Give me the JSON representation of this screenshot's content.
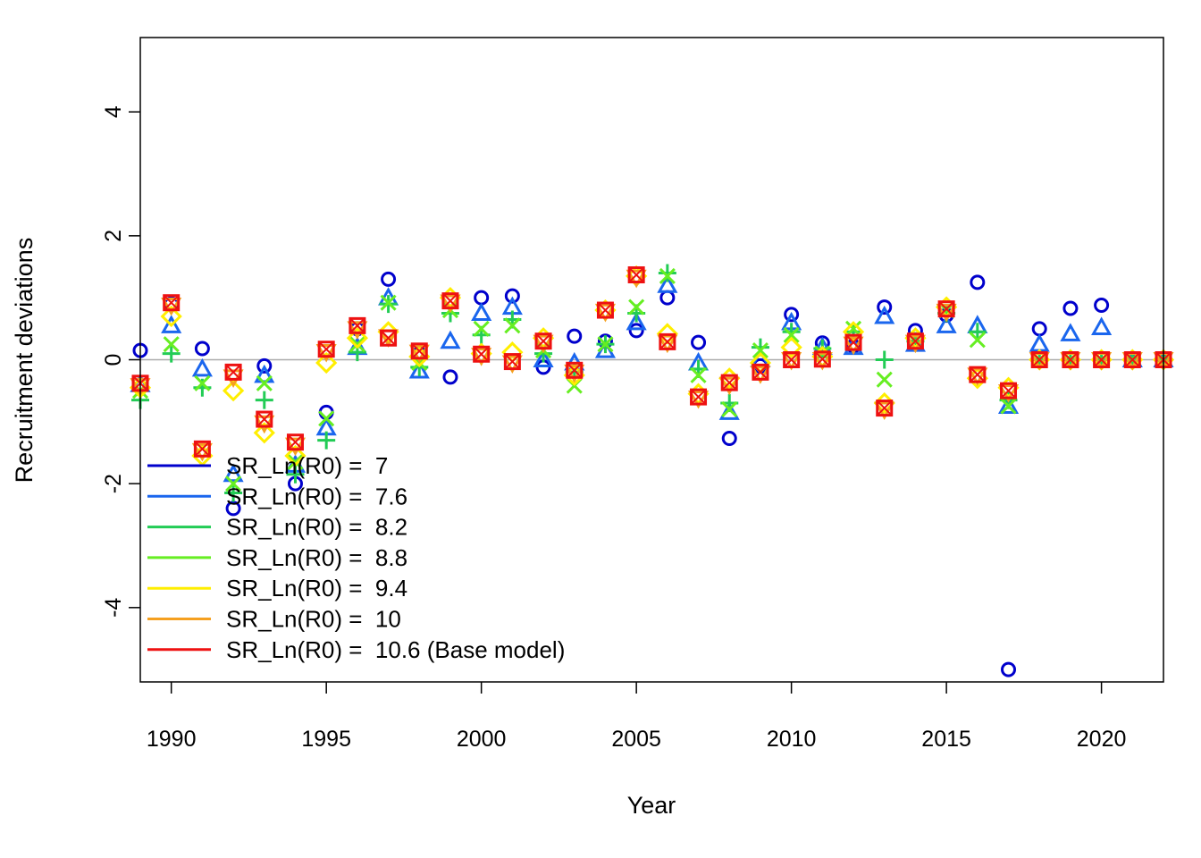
{
  "chart_data": {
    "type": "scatter",
    "title": "",
    "xlabel": "Year",
    "ylabel": "Recruitment deviations",
    "xlim": [
      1989,
      2022
    ],
    "ylim": [
      -5.2,
      5.2
    ],
    "xticks": [
      1990,
      1995,
      2000,
      2005,
      2010,
      2015,
      2020
    ],
    "yticks": [
      -4,
      -2,
      0,
      2,
      4
    ],
    "reference_line": 0,
    "grid": false,
    "legend_position": "bottom-left",
    "series": [
      {
        "name": "SR_Ln(R0) =  7",
        "color": "#0000cc",
        "marker": "circle",
        "points": [
          [
            1989,
            0.15
          ],
          [
            1990,
            0.9
          ],
          [
            1991,
            0.18
          ],
          [
            1992,
            -2.4
          ],
          [
            1993,
            -0.1
          ],
          [
            1994,
            -2.0
          ],
          [
            1995,
            -0.85
          ],
          [
            1996,
            0.5
          ],
          [
            1997,
            1.3
          ],
          [
            1998,
            0.1
          ],
          [
            1999,
            -0.28
          ],
          [
            2000,
            1.0
          ],
          [
            2001,
            1.03
          ],
          [
            2002,
            -0.12
          ],
          [
            2003,
            0.38
          ],
          [
            2004,
            0.3
          ],
          [
            2005,
            0.47
          ],
          [
            2006,
            1.0
          ],
          [
            2007,
            0.28
          ],
          [
            2008,
            -1.27
          ],
          [
            2009,
            -0.1
          ],
          [
            2010,
            0.73
          ],
          [
            2011,
            0.27
          ],
          [
            2012,
            0.22
          ],
          [
            2013,
            0.85
          ],
          [
            2014,
            0.47
          ],
          [
            2015,
            0.72
          ],
          [
            2016,
            1.25
          ],
          [
            2017,
            -5.0
          ],
          [
            2018,
            0.5
          ],
          [
            2019,
            0.83
          ],
          [
            2020,
            0.88
          ],
          [
            2021,
            0.0
          ],
          [
            2022,
            0.0
          ]
        ]
      },
      {
        "name": "SR_Ln(R0) =  7.6",
        "color": "#1a66ee",
        "marker": "triangle",
        "points": [
          [
            1989,
            -0.4
          ],
          [
            1990,
            0.55
          ],
          [
            1991,
            -0.15
          ],
          [
            1992,
            -1.85
          ],
          [
            1993,
            -0.25
          ],
          [
            1994,
            -1.7
          ],
          [
            1995,
            -1.1
          ],
          [
            1996,
            0.2
          ],
          [
            1997,
            1.0
          ],
          [
            1998,
            -0.18
          ],
          [
            1999,
            0.3
          ],
          [
            2000,
            0.75
          ],
          [
            2001,
            0.85
          ],
          [
            2002,
            0.0
          ],
          [
            2003,
            -0.05
          ],
          [
            2004,
            0.15
          ],
          [
            2005,
            0.6
          ],
          [
            2006,
            1.2
          ],
          [
            2007,
            -0.05
          ],
          [
            2008,
            -0.85
          ],
          [
            2009,
            0.0
          ],
          [
            2010,
            0.6
          ],
          [
            2011,
            0.2
          ],
          [
            2012,
            0.2
          ],
          [
            2013,
            0.7
          ],
          [
            2014,
            0.25
          ],
          [
            2015,
            0.55
          ],
          [
            2016,
            0.55
          ],
          [
            2017,
            -0.75
          ],
          [
            2018,
            0.25
          ],
          [
            2019,
            0.42
          ],
          [
            2020,
            0.52
          ],
          [
            2021,
            0.0
          ],
          [
            2022,
            0.0
          ]
        ]
      },
      {
        "name": "SR_Ln(R0) =  8.2",
        "color": "#22cc55",
        "marker": "plus",
        "points": [
          [
            1989,
            -0.65
          ],
          [
            1990,
            0.1
          ],
          [
            1991,
            -0.45
          ],
          [
            1992,
            -2.15
          ],
          [
            1993,
            -0.65
          ],
          [
            1994,
            -1.85
          ],
          [
            1995,
            -1.3
          ],
          [
            1996,
            0.12
          ],
          [
            1997,
            0.9
          ],
          [
            1998,
            -0.12
          ],
          [
            1999,
            0.75
          ],
          [
            2000,
            0.4
          ],
          [
            2001,
            0.65
          ],
          [
            2002,
            0.1
          ],
          [
            2003,
            -0.2
          ],
          [
            2004,
            0.25
          ],
          [
            2005,
            0.75
          ],
          [
            2006,
            1.4
          ],
          [
            2007,
            -0.15
          ],
          [
            2008,
            -0.7
          ],
          [
            2009,
            0.2
          ],
          [
            2010,
            0.45
          ],
          [
            2011,
            0.18
          ],
          [
            2012,
            0.45
          ],
          [
            2013,
            0.0
          ],
          [
            2014,
            0.3
          ],
          [
            2015,
            0.75
          ],
          [
            2016,
            0.45
          ],
          [
            2017,
            -0.65
          ],
          [
            2018,
            0.0
          ],
          [
            2019,
            0.0
          ],
          [
            2020,
            0.0
          ],
          [
            2021,
            0.0
          ],
          [
            2022,
            0.0
          ]
        ]
      },
      {
        "name": "SR_Ln(R0) =  8.8",
        "color": "#66ee22",
        "marker": "x",
        "points": [
          [
            1989,
            -0.5
          ],
          [
            1990,
            0.25
          ],
          [
            1991,
            -0.38
          ],
          [
            1992,
            -2.0
          ],
          [
            1993,
            -0.38
          ],
          [
            1994,
            -1.65
          ],
          [
            1995,
            -0.95
          ],
          [
            1996,
            0.25
          ],
          [
            1997,
            0.92
          ],
          [
            1998,
            -0.05
          ],
          [
            1999,
            0.8
          ],
          [
            2000,
            0.5
          ],
          [
            2001,
            0.55
          ],
          [
            2002,
            0.15
          ],
          [
            2003,
            -0.42
          ],
          [
            2004,
            0.25
          ],
          [
            2005,
            0.85
          ],
          [
            2006,
            1.35
          ],
          [
            2007,
            -0.25
          ],
          [
            2008,
            -0.8
          ],
          [
            2009,
            0.15
          ],
          [
            2010,
            0.4
          ],
          [
            2011,
            0.1
          ],
          [
            2012,
            0.5
          ],
          [
            2013,
            -0.32
          ],
          [
            2014,
            0.3
          ],
          [
            2015,
            0.8
          ],
          [
            2016,
            0.32
          ],
          [
            2017,
            -0.75
          ],
          [
            2018,
            0.0
          ],
          [
            2019,
            0.0
          ],
          [
            2020,
            0.0
          ],
          [
            2021,
            0.0
          ],
          [
            2022,
            0.0
          ]
        ]
      },
      {
        "name": "SR_Ln(R0) =  9.4",
        "color": "#ffee00",
        "marker": "diamond",
        "points": [
          [
            1989,
            -0.45
          ],
          [
            1990,
            0.7
          ],
          [
            1991,
            -1.55
          ],
          [
            1992,
            -0.5
          ],
          [
            1993,
            -1.18
          ],
          [
            1994,
            -1.55
          ],
          [
            1995,
            -0.05
          ],
          [
            1996,
            0.35
          ],
          [
            1997,
            0.45
          ],
          [
            1998,
            0.05
          ],
          [
            1999,
            1.0
          ],
          [
            2000,
            0.1
          ],
          [
            2001,
            0.12
          ],
          [
            2002,
            0.35
          ],
          [
            2003,
            -0.25
          ],
          [
            2004,
            0.8
          ],
          [
            2005,
            1.35
          ],
          [
            2006,
            0.42
          ],
          [
            2007,
            -0.55
          ],
          [
            2008,
            -0.3
          ],
          [
            2009,
            -0.05
          ],
          [
            2010,
            0.2
          ],
          [
            2011,
            0.05
          ],
          [
            2012,
            0.45
          ],
          [
            2013,
            -0.7
          ],
          [
            2014,
            0.35
          ],
          [
            2015,
            0.85
          ],
          [
            2016,
            -0.3
          ],
          [
            2017,
            -0.45
          ],
          [
            2018,
            0.0
          ],
          [
            2019,
            0.0
          ],
          [
            2020,
            0.0
          ],
          [
            2021,
            0.0
          ],
          [
            2022,
            0.0
          ]
        ]
      },
      {
        "name": "SR_Ln(R0) =  10",
        "color": "#f5a020",
        "marker": "triangle-down",
        "points": [
          [
            1989,
            -0.42
          ],
          [
            1990,
            0.88
          ],
          [
            1991,
            -1.47
          ],
          [
            1992,
            -0.28
          ],
          [
            1993,
            -1.02
          ],
          [
            1994,
            -1.38
          ],
          [
            1995,
            0.13
          ],
          [
            1996,
            0.5
          ],
          [
            1997,
            0.37
          ],
          [
            1998,
            0.12
          ],
          [
            1999,
            0.93
          ],
          [
            2000,
            0.07
          ],
          [
            2001,
            -0.05
          ],
          [
            2002,
            0.28
          ],
          [
            2003,
            -0.2
          ],
          [
            2004,
            0.78
          ],
          [
            2005,
            1.33
          ],
          [
            2006,
            0.28
          ],
          [
            2007,
            -0.62
          ],
          [
            2008,
            -0.4
          ],
          [
            2009,
            -0.22
          ],
          [
            2010,
            0.0
          ],
          [
            2011,
            0.0
          ],
          [
            2012,
            0.25
          ],
          [
            2013,
            -0.8
          ],
          [
            2014,
            0.28
          ],
          [
            2015,
            0.78
          ],
          [
            2016,
            -0.25
          ],
          [
            2017,
            -0.52
          ],
          [
            2018,
            0.0
          ],
          [
            2019,
            0.0
          ],
          [
            2020,
            0.0
          ],
          [
            2021,
            0.0
          ],
          [
            2022,
            0.0
          ]
        ]
      },
      {
        "name": "SR_Ln(R0) =  10.6 (Base model)",
        "color": "#ee1111",
        "marker": "boxed-x",
        "points": [
          [
            1989,
            -0.38
          ],
          [
            1990,
            0.92
          ],
          [
            1991,
            -1.44
          ],
          [
            1992,
            -0.2
          ],
          [
            1993,
            -0.96
          ],
          [
            1994,
            -1.33
          ],
          [
            1995,
            0.17
          ],
          [
            1996,
            0.55
          ],
          [
            1997,
            0.35
          ],
          [
            1998,
            0.14
          ],
          [
            1999,
            0.95
          ],
          [
            2000,
            0.09
          ],
          [
            2001,
            -0.03
          ],
          [
            2002,
            0.3
          ],
          [
            2003,
            -0.17
          ],
          [
            2004,
            0.8
          ],
          [
            2005,
            1.37
          ],
          [
            2006,
            0.29
          ],
          [
            2007,
            -0.6
          ],
          [
            2008,
            -0.37
          ],
          [
            2009,
            -0.2
          ],
          [
            2010,
            0.0
          ],
          [
            2011,
            0.01
          ],
          [
            2012,
            0.28
          ],
          [
            2013,
            -0.78
          ],
          [
            2014,
            0.3
          ],
          [
            2015,
            0.82
          ],
          [
            2016,
            -0.24
          ],
          [
            2017,
            -0.5
          ],
          [
            2018,
            0.0
          ],
          [
            2019,
            0.0
          ],
          [
            2020,
            0.0
          ],
          [
            2021,
            0.0
          ],
          [
            2022,
            0.0
          ]
        ]
      }
    ]
  }
}
